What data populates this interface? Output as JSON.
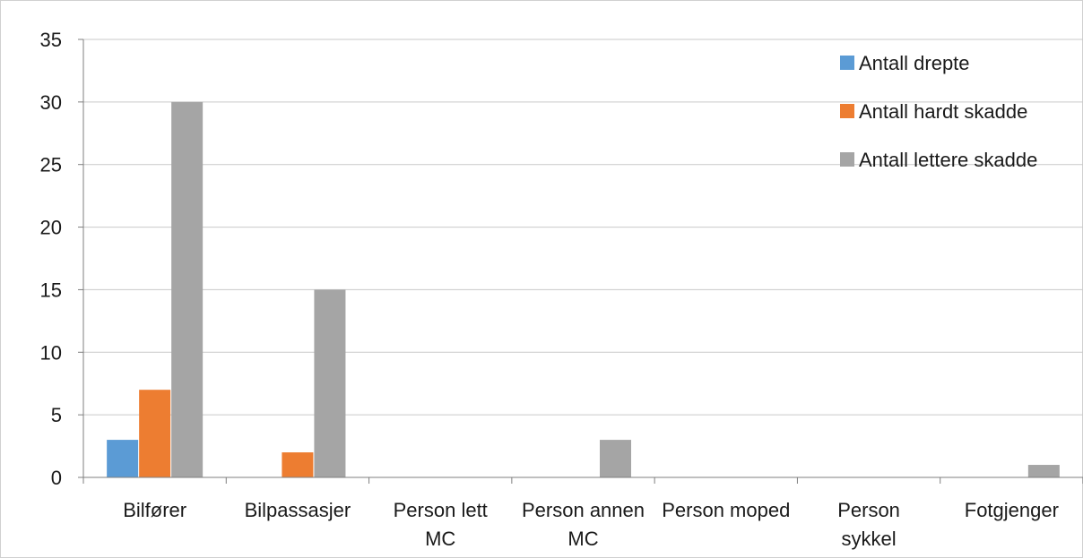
{
  "chart_data": {
    "type": "bar",
    "categories": [
      "Bilfører",
      "Bilpassasjer",
      "Person lett MC",
      "Person annen MC",
      "Person moped",
      "Person sykkel",
      "Fotgjenger"
    ],
    "series": [
      {
        "name": "Antall drepte",
        "color": "#5b9bd5",
        "values": [
          3,
          0,
          0,
          0,
          0,
          0,
          0
        ]
      },
      {
        "name": "Antall hardt skadde",
        "color": "#ed7d31",
        "values": [
          7,
          2,
          0,
          0,
          0,
          0,
          0
        ]
      },
      {
        "name": "Antall lettere skadde",
        "color": "#a5a5a5",
        "values": [
          30,
          15,
          0,
          3,
          0,
          0,
          1
        ]
      }
    ],
    "ylim": [
      0,
      35
    ],
    "yticks": [
      0,
      5,
      10,
      15,
      20,
      25,
      30,
      35
    ],
    "grid": true,
    "legend_position": "top-right"
  }
}
